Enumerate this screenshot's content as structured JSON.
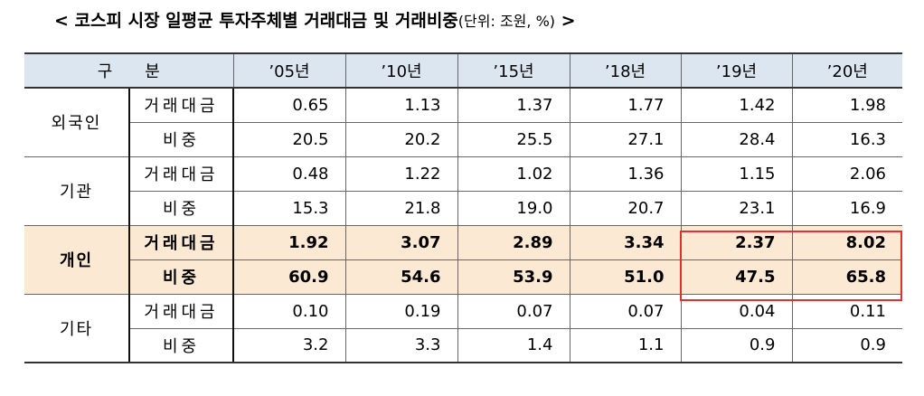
{
  "title": {
    "main": "< 코스피 시장 일평균 투자주체별 거래대금 및 거래비중",
    "unit": "(단위: 조원, %)",
    "close": " >"
  },
  "table": {
    "header": {
      "label": "구　　분",
      "years": [
        "’05년",
        "’10년",
        "’15년",
        "’18년",
        "’19년",
        "’20년"
      ]
    },
    "groups": [
      {
        "label": "외국인",
        "rows": [
          {
            "label": "거래대금",
            "values": [
              "0.65",
              "1.13",
              "1.37",
              "1.77",
              "1.42",
              "1.98"
            ]
          },
          {
            "label": "비중",
            "values": [
              "20.5",
              "20.2",
              "25.5",
              "27.1",
              "28.4",
              "16.3"
            ]
          }
        ]
      },
      {
        "label": "기관",
        "rows": [
          {
            "label": "거래대금",
            "values": [
              "0.48",
              "1.22",
              "1.02",
              "1.36",
              "1.15",
              "2.06"
            ]
          },
          {
            "label": "비중",
            "values": [
              "15.3",
              "21.8",
              "19.0",
              "20.7",
              "23.1",
              "16.9"
            ]
          }
        ]
      },
      {
        "label": "개인",
        "rows": [
          {
            "label": "거래대금",
            "values": [
              "1.92",
              "3.07",
              "2.89",
              "3.34",
              "2.37",
              "8.02"
            ]
          },
          {
            "label": "비중",
            "values": [
              "60.9",
              "54.6",
              "53.9",
              "51.0",
              "47.5",
              "65.8"
            ]
          }
        ]
      },
      {
        "label": "기타",
        "rows": [
          {
            "label": "거래대금",
            "values": [
              "0.10",
              "0.19",
              "0.07",
              "0.07",
              "0.04",
              "0.11"
            ]
          },
          {
            "label": "비중",
            "values": [
              "3.2",
              "3.3",
              "1.4",
              "1.1",
              "0.9",
              "0.9"
            ]
          }
        ]
      }
    ]
  }
}
